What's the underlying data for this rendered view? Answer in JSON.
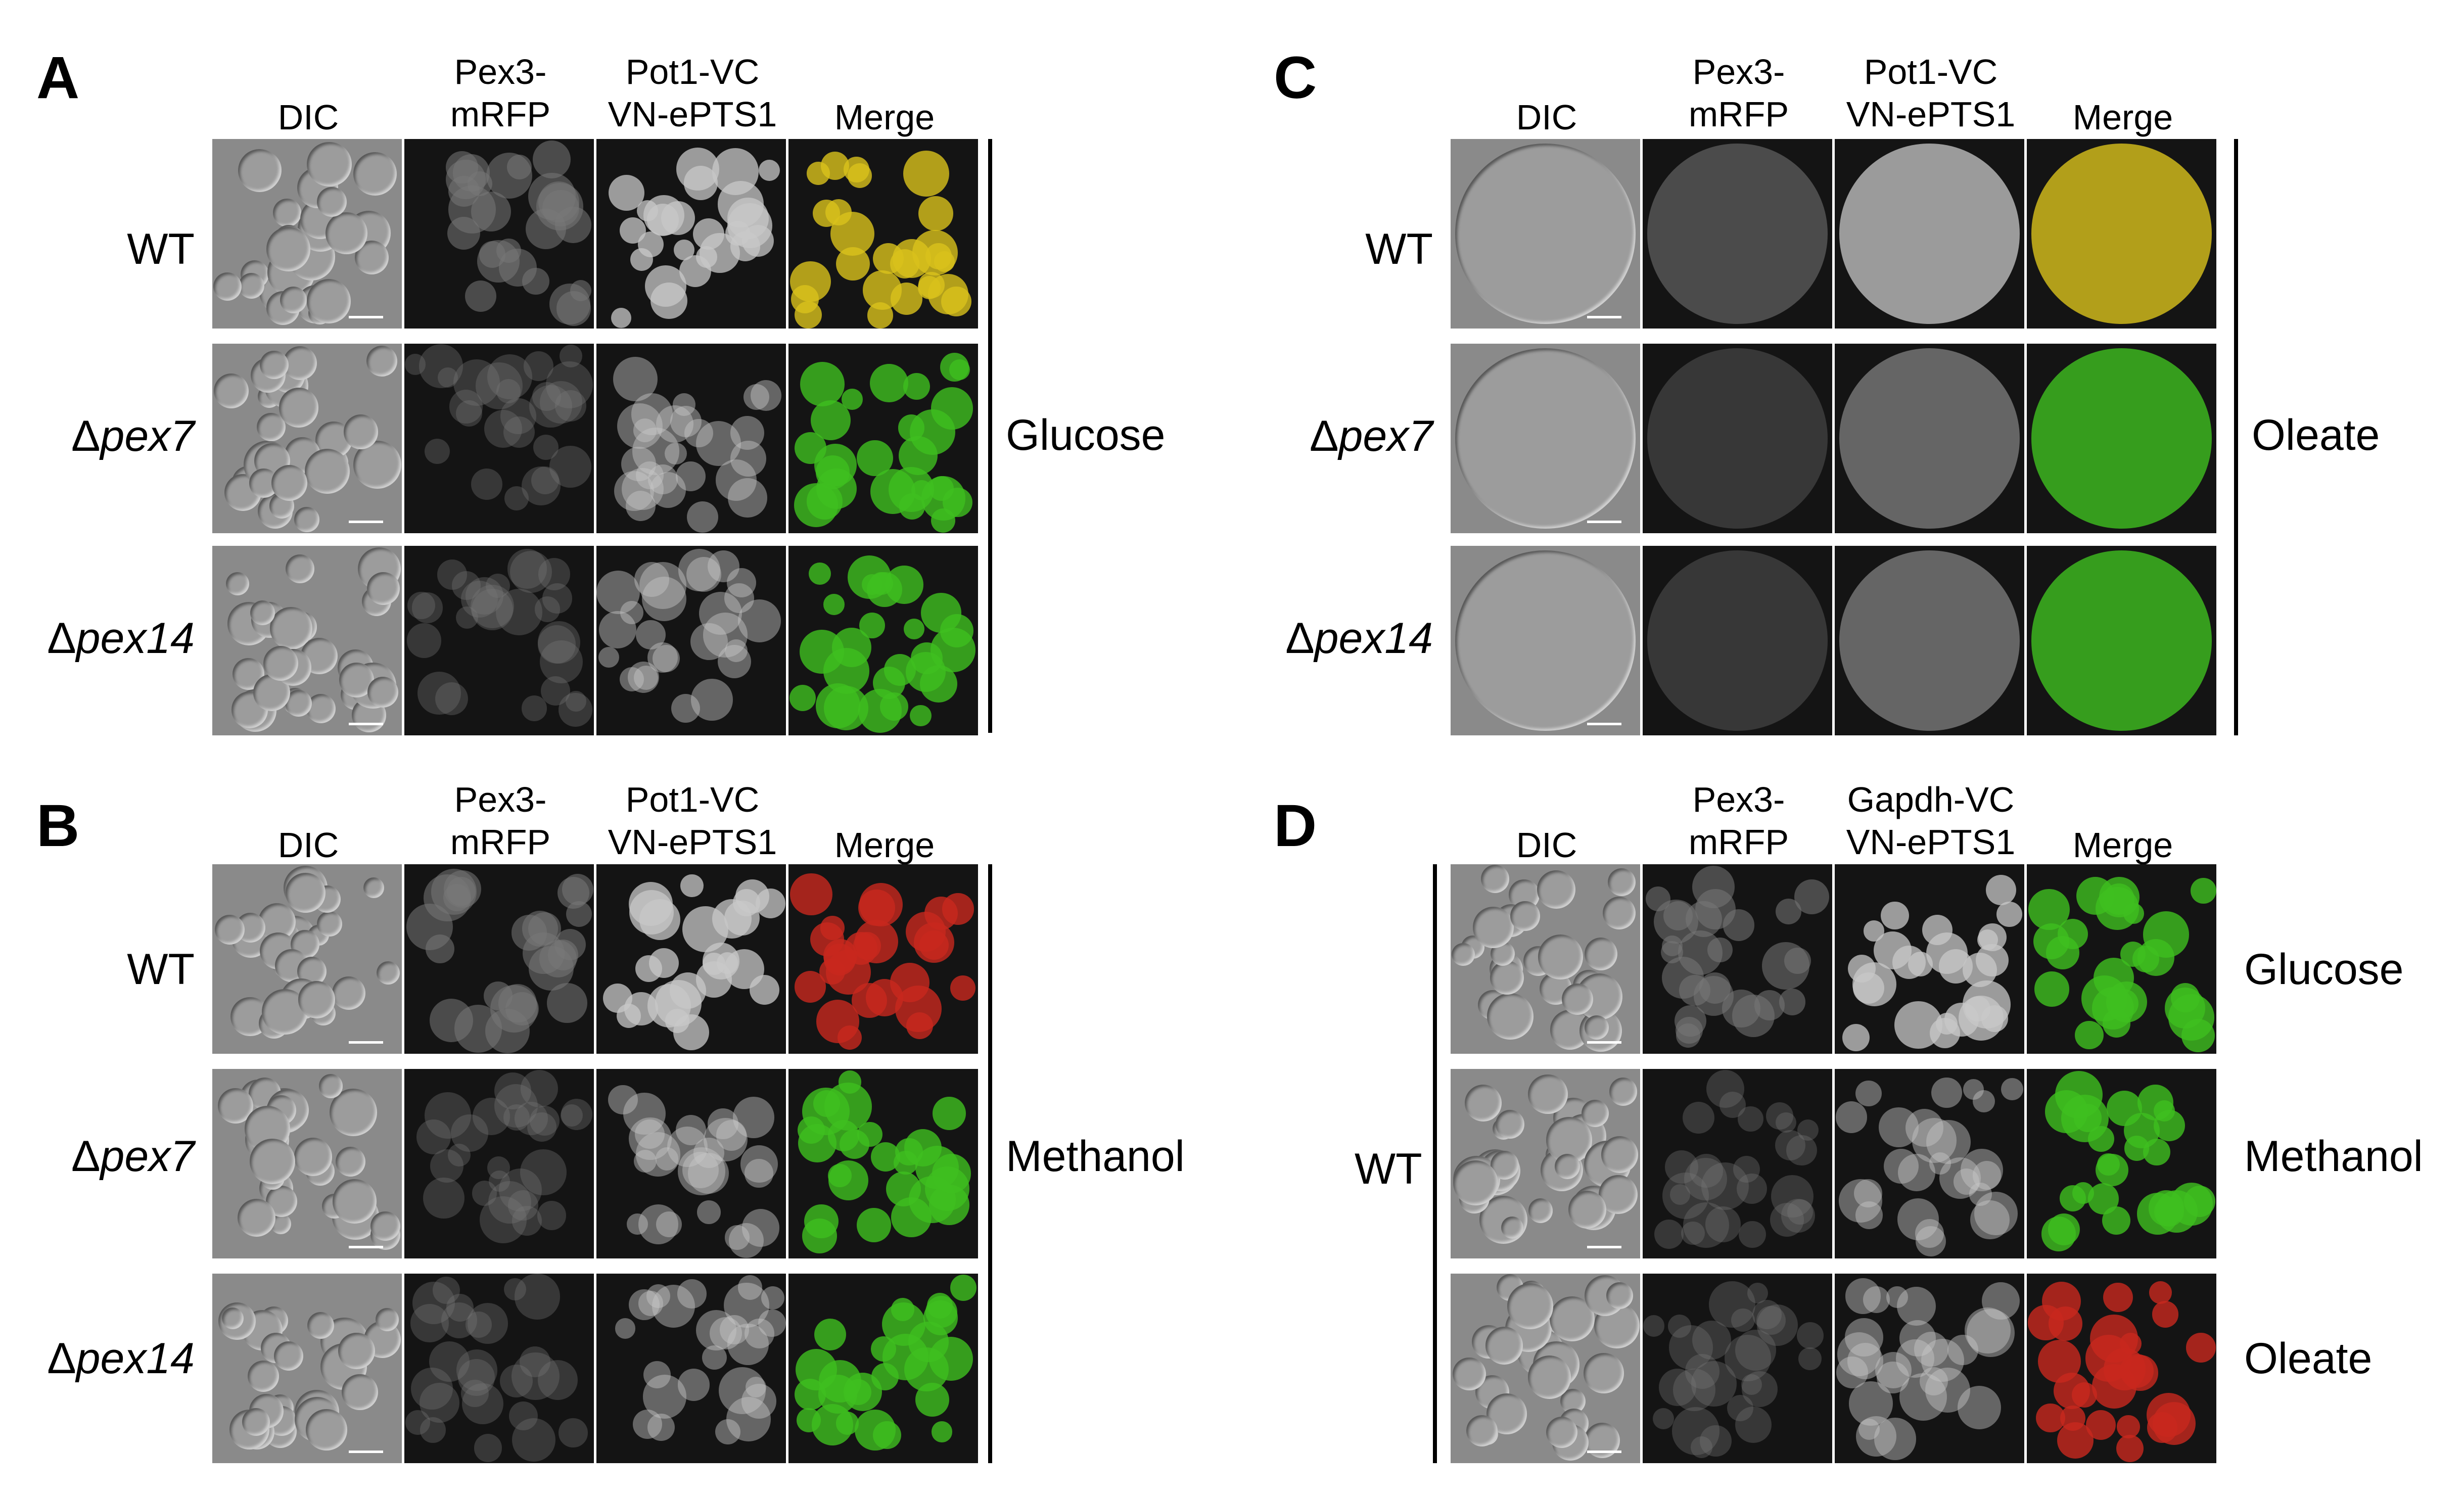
{
  "figure": {
    "panels": [
      {
        "letter": "A",
        "columns": [
          "DIC",
          "Pex3-\nmRFP",
          "Pot1-VC\nVN-ePTS1",
          "Merge"
        ],
        "rows": [
          {
            "prefix": "",
            "name": "WT"
          },
          {
            "prefix": "Δ",
            "name": "pex7"
          },
          {
            "prefix": "Δ",
            "name": "pex14"
          }
        ],
        "condition": "Glucose"
      },
      {
        "letter": "B",
        "columns": [
          "DIC",
          "Pex3-\nmRFP",
          "Pot1-VC\nVN-ePTS1",
          "Merge"
        ],
        "rows": [
          {
            "prefix": "",
            "name": "WT"
          },
          {
            "prefix": "Δ",
            "name": "pex7"
          },
          {
            "prefix": "Δ",
            "name": "pex14"
          }
        ],
        "condition": "Methanol"
      },
      {
        "letter": "C",
        "columns": [
          "DIC",
          "Pex3-\nmRFP",
          "Pot1-VC\nVN-ePTS1",
          "Merge"
        ],
        "rows": [
          {
            "prefix": "",
            "name": "WT"
          },
          {
            "prefix": "Δ",
            "name": "pex7"
          },
          {
            "prefix": "Δ",
            "name": "pex14"
          }
        ],
        "condition": "Oleate"
      },
      {
        "letter": "D",
        "columns": [
          "DIC",
          "Pex3-\nmRFP",
          "Gapdh-VC\nVN-ePTS1",
          "Merge"
        ],
        "strain": "WT",
        "conditions": [
          "Glucose",
          "Methanol",
          "Oleate"
        ]
      }
    ]
  },
  "colors": {
    "dic_bg": "#8a8a8a",
    "fluor_bg": "#141414",
    "green": "#3fbf1f",
    "red": "#c8281e",
    "yellow": "#d9c21c"
  }
}
